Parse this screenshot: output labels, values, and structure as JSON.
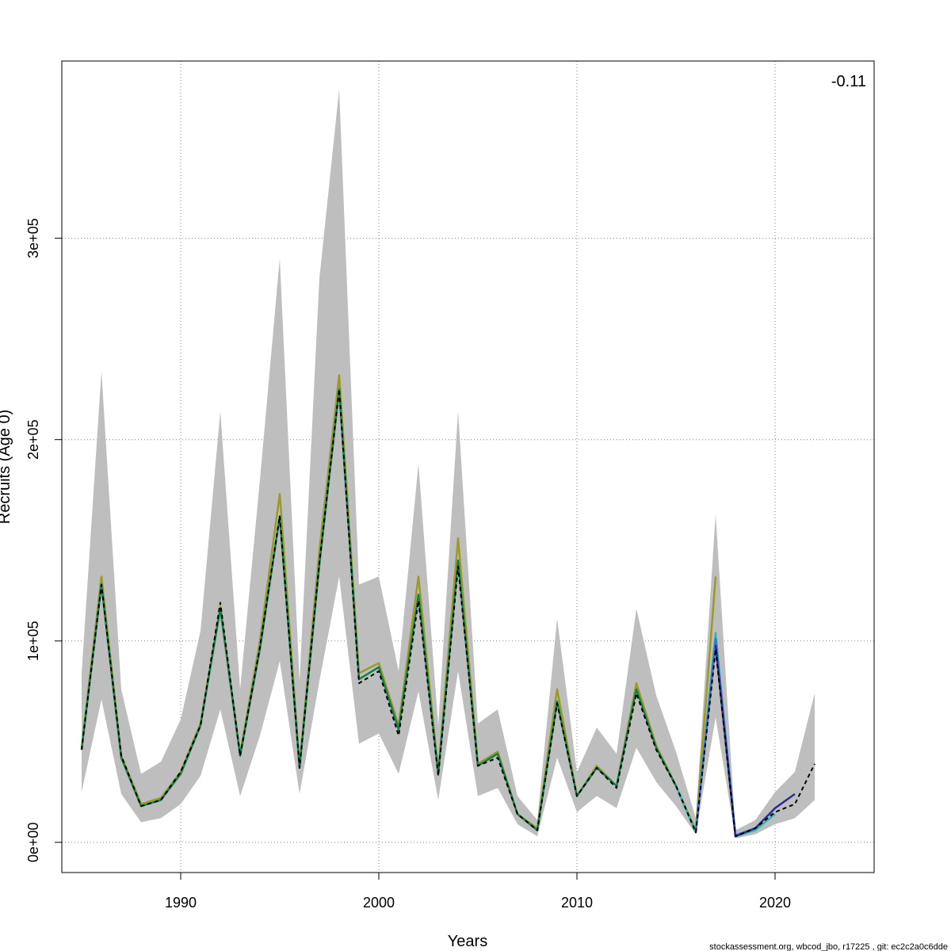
{
  "chart_data": {
    "type": "line",
    "title": "",
    "xlabel": "Years",
    "ylabel": "Recruits (Age 0)",
    "xlim": [
      1984,
      2025
    ],
    "ylim": [
      -15000,
      388000
    ],
    "x_ticks": [
      1990,
      2000,
      2010,
      2020
    ],
    "x_tick_labels": [
      "1990",
      "2000",
      "2010",
      "2020"
    ],
    "y_ticks": [
      0,
      100000,
      200000,
      300000
    ],
    "y_tick_labels": [
      "0e+00",
      "1e+05",
      "2e+05",
      "3e+05"
    ],
    "grid": true,
    "annotation": "-0.11",
    "footer": "stockassessment.org, wbcod_jbo, r17225 , git: ec2c2a0c6dde",
    "colors": {
      "band": "#bebebe",
      "grid": "#7f7f7f",
      "base": "#000000",
      "olive": "#9a9a26",
      "green": "#12804a",
      "teal": "#30b8b8",
      "navy": "#2c2c94",
      "blue": "#3f6fd2"
    },
    "band": {
      "x": [
        1985,
        1986,
        1987,
        1988,
        1989,
        1990,
        1991,
        1992,
        1993,
        1994,
        1995,
        1996,
        1997,
        1998,
        1999,
        2000,
        2001,
        2002,
        2003,
        2004,
        2005,
        2006,
        2007,
        2008,
        2009,
        2010,
        2011,
        2012,
        2013,
        2014,
        2015,
        2016,
        2017,
        2018,
        2019,
        2020,
        2021,
        2022
      ],
      "lower": [
        25000,
        71000,
        24000,
        10000,
        12000,
        19000,
        33000,
        66000,
        23000,
        53000,
        90000,
        24000,
        80000,
        132000,
        49000,
        54000,
        34000,
        75000,
        21000,
        85000,
        23000,
        27000,
        9000,
        3000,
        42000,
        15000,
        23000,
        17000,
        47000,
        30000,
        18000,
        4000,
        62000,
        2000,
        4000,
        9000,
        12000,
        21000
      ],
      "upper": [
        84000,
        234000,
        76000,
        34000,
        40000,
        61000,
        105000,
        214000,
        76000,
        180000,
        290000,
        80000,
        280000,
        374000,
        128000,
        132000,
        85000,
        188000,
        58000,
        214000,
        59000,
        66000,
        23000,
        11000,
        111000,
        35000,
        57000,
        44000,
        116000,
        73000,
        45000,
        12000,
        163000,
        6000,
        11000,
        25000,
        35000,
        74000
      ]
    },
    "series": [
      {
        "color": "olive",
        "x": [
          1985,
          1986,
          1987,
          1988,
          1989,
          1990,
          1991,
          1992,
          1993,
          1994,
          1995,
          1996,
          1997,
          1998,
          1999,
          2000,
          2001,
          2002,
          2003,
          2004,
          2005,
          2006,
          2007,
          2008,
          2009,
          2010,
          2011,
          2012,
          2013,
          2014,
          2015,
          2016,
          2017
        ],
        "values": [
          47000,
          132000,
          43000,
          19000,
          22000,
          35000,
          59000,
          117000,
          44000,
          100000,
          173000,
          38000,
          145000,
          232000,
          84000,
          89000,
          58000,
          132000,
          35000,
          151000,
          39000,
          45000,
          14000,
          7000,
          76000,
          23000,
          38000,
          28000,
          79000,
          48000,
          28000,
          6000,
          132000
        ]
      },
      {
        "color": "green",
        "x": [
          1985,
          1986,
          1987,
          1988,
          1989,
          1990,
          1991,
          1992,
          1993,
          1994,
          1995,
          1996,
          1997,
          1998,
          1999,
          2000,
          2001,
          2002,
          2003,
          2004,
          2005,
          2006,
          2007,
          2008,
          2009,
          2010,
          2011,
          2012,
          2013,
          2014,
          2015,
          2016,
          2017,
          2018
        ],
        "values": [
          46000,
          128000,
          42000,
          18000,
          21000,
          34000,
          58000,
          116000,
          43000,
          96000,
          162000,
          37000,
          138000,
          225000,
          81000,
          87000,
          56000,
          123000,
          34000,
          140000,
          38000,
          44000,
          14000,
          6000,
          70000,
          23000,
          37000,
          28000,
          76000,
          47000,
          28000,
          5000,
          99000,
          3000
        ]
      },
      {
        "color": "teal",
        "x": [
          2015,
          2016,
          2017,
          2018,
          2019,
          2020
        ],
        "values": [
          28000,
          5000,
          104000,
          3000,
          6000,
          14000
        ]
      },
      {
        "color": "blue",
        "x": [
          2016,
          2017,
          2018,
          2019
        ],
        "values": [
          5000,
          101000,
          3500,
          7000
        ]
      },
      {
        "color": "navy",
        "x": [
          2017,
          2018,
          2019,
          2020,
          2021
        ],
        "values": [
          98000,
          3000,
          7000,
          17000,
          24000
        ]
      },
      {
        "color": "base",
        "dashed": true,
        "x": [
          1985,
          1986,
          1987,
          1988,
          1989,
          1990,
          1991,
          1992,
          1993,
          1994,
          1995,
          1996,
          1997,
          1998,
          1999,
          2000,
          2001,
          2002,
          2003,
          2004,
          2005,
          2006,
          2007,
          2008,
          2009,
          2010,
          2011,
          2012,
          2013,
          2014,
          2015,
          2016,
          2017,
          2018,
          2019,
          2020,
          2021,
          2022
        ],
        "values": [
          46000,
          128000,
          43000,
          18000,
          21000,
          35000,
          58000,
          119000,
          43000,
          97000,
          162000,
          37000,
          139000,
          225000,
          79000,
          85000,
          53000,
          120000,
          33000,
          137000,
          38000,
          42000,
          14000,
          6000,
          69000,
          23000,
          37000,
          27000,
          74000,
          46000,
          28000,
          5000,
          96000,
          3000,
          7000,
          15000,
          19000,
          39000
        ]
      }
    ]
  }
}
